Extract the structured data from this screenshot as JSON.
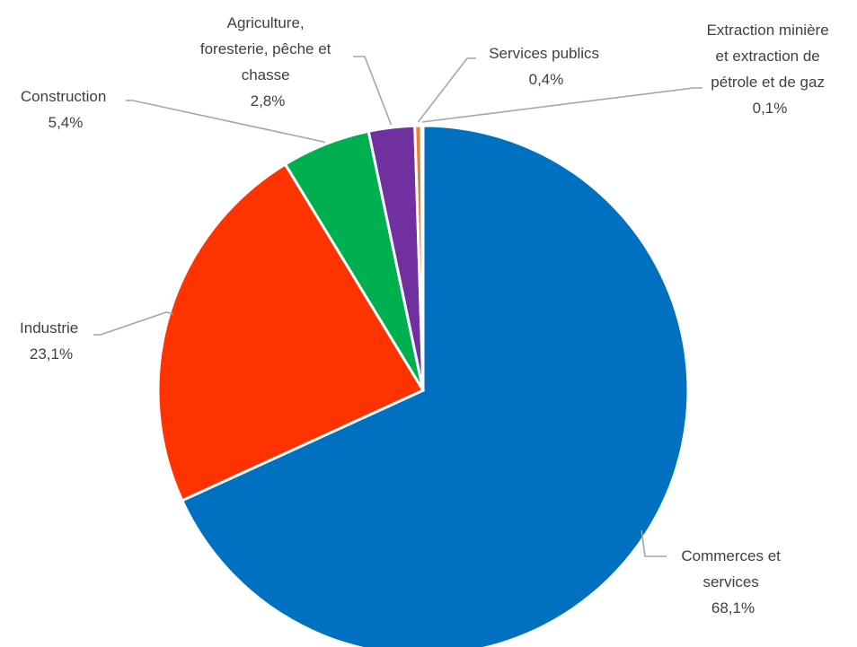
{
  "chart_data": {
    "type": "pie",
    "slices": [
      {
        "label_lines": [
          "Commerces et",
          "services"
        ],
        "value": 68.1,
        "value_label": "68,1%",
        "color": "#0070C0"
      },
      {
        "label_lines": [
          "Industrie"
        ],
        "value": 23.1,
        "value_label": "23,1%",
        "color": "#FF3300"
      },
      {
        "label_lines": [
          "Construction"
        ],
        "value": 5.4,
        "value_label": "5,4%",
        "color": "#00B050"
      },
      {
        "label_lines": [
          "Agriculture,",
          "foresterie, pêche et",
          "chasse"
        ],
        "value": 2.8,
        "value_label": "2,8%",
        "color": "#7030A0"
      },
      {
        "label_lines": [
          "Services publics"
        ],
        "value": 0.4,
        "value_label": "0,4%",
        "color": "#ED7D31"
      },
      {
        "label_lines": [
          "Extraction minière",
          "et extraction de",
          "pétrole et de gaz"
        ],
        "value": 0.1,
        "value_label": "0,1%",
        "color": "#FFC000"
      }
    ],
    "start_angle": "12 o'clock",
    "direction": "clockwise"
  }
}
